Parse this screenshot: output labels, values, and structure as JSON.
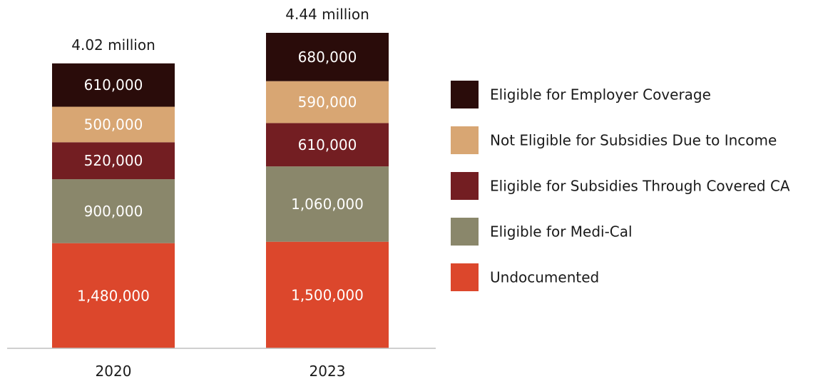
{
  "chart_data": {
    "type": "bar",
    "stacked": true,
    "categories": [
      "2020",
      "2023"
    ],
    "totals": [
      "4.02 million",
      "4.44 million"
    ],
    "series": [
      {
        "name": "Undocumented",
        "values": [
          1480000,
          1500000
        ],
        "labels": [
          "1,480,000",
          "1,500,000"
        ],
        "color": "#dc472c"
      },
      {
        "name": "Eligible for Medi-Cal",
        "values": [
          900000,
          1060000
        ],
        "labels": [
          "900,000",
          "1,060,000"
        ],
        "color": "#8a876b"
      },
      {
        "name": "Eligible for Subsidies Through Covered CA",
        "values": [
          520000,
          610000
        ],
        "labels": [
          "520,000",
          "610,000"
        ],
        "color": "#731e22"
      },
      {
        "name": "Not Eligible for Subsidies Due to Income",
        "values": [
          500000,
          590000
        ],
        "labels": [
          "500,000",
          "590,000"
        ],
        "color": "#d8a673"
      },
      {
        "name": "Eligible for Employer Coverage",
        "values": [
          610000,
          680000
        ],
        "labels": [
          "610,000",
          "680,000"
        ],
        "color": "#2a0c0a"
      }
    ],
    "legend_order": [
      4,
      3,
      2,
      1,
      0
    ],
    "legend_position": "right",
    "grid": false,
    "ylim": [
      0,
      4440000
    ]
  }
}
